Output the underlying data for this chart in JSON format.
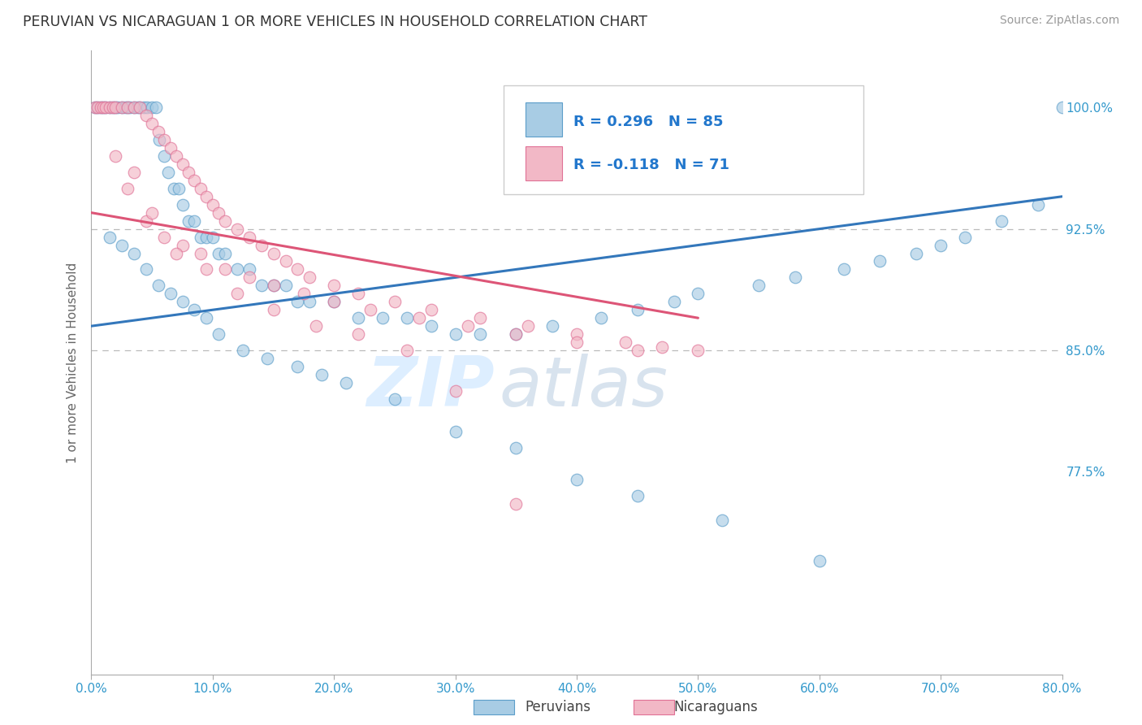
{
  "title": "PERUVIAN VS NICARAGUAN 1 OR MORE VEHICLES IN HOUSEHOLD CORRELATION CHART",
  "source_text": "Source: ZipAtlas.com",
  "xlabel_peruvians": "Peruvians",
  "xlabel_nicaraguans": "Nicaraguans",
  "ylabel": "1 or more Vehicles in Household",
  "xlim": [
    0.0,
    80.0
  ],
  "ylim": [
    65.0,
    103.5
  ],
  "yticks": [
    77.5,
    85.0,
    92.5,
    100.0
  ],
  "xticks": [
    0.0,
    10.0,
    20.0,
    30.0,
    40.0,
    50.0,
    60.0,
    70.0,
    80.0
  ],
  "legend_blue_r": "R = 0.296",
  "legend_blue_n": "N = 85",
  "legend_pink_r": "R = -0.118",
  "legend_pink_n": "N = 71",
  "blue_color": "#a8cce4",
  "pink_color": "#f2b8c6",
  "blue_edge_color": "#5b9dc9",
  "pink_edge_color": "#e07095",
  "blue_line_color": "#3377bb",
  "pink_line_color": "#dd5577",
  "title_color": "#333333",
  "source_color": "#999999",
  "legend_r_color": "#2277cc",
  "axis_label_color": "#666666",
  "tick_label_color": "#3399cc",
  "watermark_color": "#ddeeff",
  "background_color": "#ffffff",
  "peru_x": [
    0.3,
    0.5,
    0.8,
    1.0,
    1.2,
    1.5,
    1.8,
    2.0,
    2.2,
    2.5,
    2.8,
    3.0,
    3.2,
    3.5,
    3.8,
    4.0,
    4.3,
    4.6,
    5.0,
    5.3,
    5.6,
    6.0,
    6.3,
    6.8,
    7.2,
    7.5,
    8.0,
    8.5,
    9.0,
    9.5,
    10.0,
    10.5,
    11.0,
    12.0,
    13.0,
    14.0,
    15.0,
    16.0,
    17.0,
    18.0,
    20.0,
    22.0,
    24.0,
    26.0,
    28.0,
    30.0,
    32.0,
    35.0,
    38.0,
    42.0,
    45.0,
    48.0,
    50.0,
    55.0,
    58.0,
    62.0,
    65.0,
    68.0,
    70.0,
    72.0,
    75.0,
    78.0,
    80.0,
    1.5,
    2.5,
    3.5,
    4.5,
    5.5,
    6.5,
    7.5,
    8.5,
    9.5,
    10.5,
    12.5,
    14.5,
    17.0,
    19.0,
    21.0,
    25.0,
    30.0,
    35.0,
    40.0,
    45.0,
    52.0,
    60.0
  ],
  "peru_y": [
    100.0,
    100.0,
    100.0,
    100.0,
    100.0,
    100.0,
    100.0,
    100.0,
    100.0,
    100.0,
    100.0,
    100.0,
    100.0,
    100.0,
    100.0,
    100.0,
    100.0,
    100.0,
    100.0,
    100.0,
    98.0,
    97.0,
    96.0,
    95.0,
    95.0,
    94.0,
    93.0,
    93.0,
    92.0,
    92.0,
    92.0,
    91.0,
    91.0,
    90.0,
    90.0,
    89.0,
    89.0,
    89.0,
    88.0,
    88.0,
    88.0,
    87.0,
    87.0,
    87.0,
    86.5,
    86.0,
    86.0,
    86.0,
    86.5,
    87.0,
    87.5,
    88.0,
    88.5,
    89.0,
    89.5,
    90.0,
    90.5,
    91.0,
    91.5,
    92.0,
    93.0,
    94.0,
    100.0,
    92.0,
    91.5,
    91.0,
    90.0,
    89.0,
    88.5,
    88.0,
    87.5,
    87.0,
    86.0,
    85.0,
    84.5,
    84.0,
    83.5,
    83.0,
    82.0,
    80.0,
    79.0,
    77.0,
    76.0,
    74.5,
    72.0
  ],
  "nica_x": [
    0.3,
    0.5,
    0.8,
    1.0,
    1.2,
    1.5,
    1.8,
    2.0,
    2.5,
    3.0,
    3.5,
    4.0,
    4.5,
    5.0,
    5.5,
    6.0,
    6.5,
    7.0,
    7.5,
    8.0,
    8.5,
    9.0,
    9.5,
    10.0,
    10.5,
    11.0,
    12.0,
    13.0,
    14.0,
    15.0,
    16.0,
    17.0,
    18.0,
    20.0,
    22.0,
    25.0,
    28.0,
    32.0,
    36.0,
    40.0,
    44.0,
    47.0,
    50.0,
    2.0,
    3.0,
    4.5,
    6.0,
    7.5,
    9.0,
    11.0,
    13.0,
    15.0,
    17.5,
    20.0,
    23.0,
    27.0,
    31.0,
    35.0,
    40.0,
    45.0,
    3.5,
    5.0,
    7.0,
    9.5,
    12.0,
    15.0,
    18.5,
    22.0,
    26.0,
    30.0,
    35.0
  ],
  "nica_y": [
    100.0,
    100.0,
    100.0,
    100.0,
    100.0,
    100.0,
    100.0,
    100.0,
    100.0,
    100.0,
    100.0,
    100.0,
    99.5,
    99.0,
    98.5,
    98.0,
    97.5,
    97.0,
    96.5,
    96.0,
    95.5,
    95.0,
    94.5,
    94.0,
    93.5,
    93.0,
    92.5,
    92.0,
    91.5,
    91.0,
    90.5,
    90.0,
    89.5,
    89.0,
    88.5,
    88.0,
    87.5,
    87.0,
    86.5,
    86.0,
    85.5,
    85.2,
    85.0,
    97.0,
    95.0,
    93.0,
    92.0,
    91.5,
    91.0,
    90.0,
    89.5,
    89.0,
    88.5,
    88.0,
    87.5,
    87.0,
    86.5,
    86.0,
    85.5,
    85.0,
    96.0,
    93.5,
    91.0,
    90.0,
    88.5,
    87.5,
    86.5,
    86.0,
    85.0,
    82.5,
    75.5
  ],
  "peru_trend_x": [
    0.0,
    80.0
  ],
  "peru_trend_y": [
    86.5,
    94.5
  ],
  "nica_trend_x": [
    0.0,
    50.0
  ],
  "nica_trend_y": [
    93.5,
    87.0
  ]
}
